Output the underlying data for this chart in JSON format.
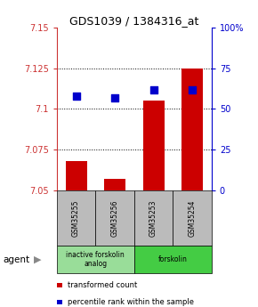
{
  "title": "GDS1039 / 1384316_at",
  "samples": [
    "GSM35255",
    "GSM35256",
    "GSM35253",
    "GSM35254"
  ],
  "red_values": [
    7.068,
    7.057,
    7.105,
    7.125
  ],
  "blue_values": [
    7.108,
    7.107,
    7.112,
    7.112
  ],
  "ylim_left": [
    7.05,
    7.15
  ],
  "yticks_left": [
    7.05,
    7.075,
    7.1,
    7.125,
    7.15
  ],
  "ytick_labels_left": [
    "7.05",
    "7.075",
    "7.1",
    "7.125",
    "7.15"
  ],
  "yticks_right_vals": [
    7.05,
    7.075,
    7.1,
    7.125,
    7.15
  ],
  "ytick_labels_right": [
    "0",
    "25",
    "50",
    "75",
    "100%"
  ],
  "gridlines": [
    7.075,
    7.1,
    7.125
  ],
  "bar_base": 7.05,
  "bar_width": 0.55,
  "bar_color": "#cc0000",
  "dot_color": "#0000cc",
  "dot_size": 30,
  "groups": [
    {
      "label": "inactive forskolin\nanalog",
      "cols": [
        0,
        1
      ],
      "color": "#99dd99"
    },
    {
      "label": "forskolin",
      "cols": [
        2,
        3
      ],
      "color": "#44cc44"
    }
  ],
  "agent_label": "agent",
  "legend_items": [
    {
      "color": "#cc0000",
      "label": "transformed count"
    },
    {
      "color": "#0000cc",
      "label": "percentile rank within the sample"
    }
  ],
  "sample_box_color": "#bbbbbb",
  "plot_bg": "#ffffff",
  "left_tick_color": "#cc3333",
  "right_tick_color": "#0000cc"
}
